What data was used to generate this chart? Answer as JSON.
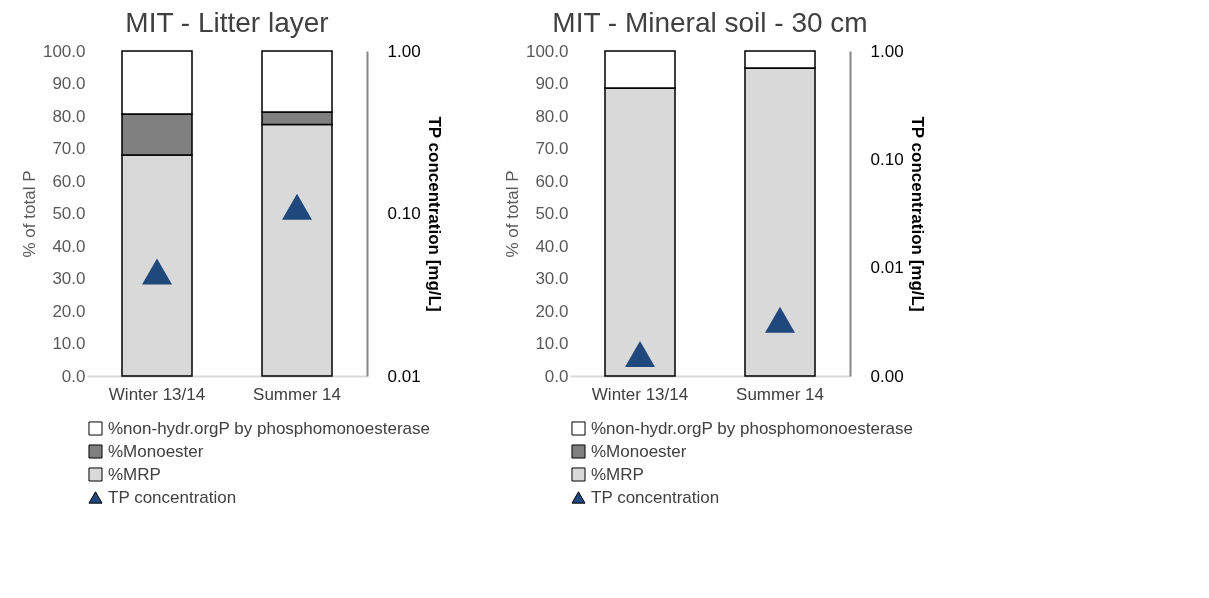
{
  "chart_data": [
    {
      "type": "bar",
      "stacked": true,
      "title": "MIT - Litter layer",
      "ylabel": "% of total P",
      "y2label": "TP concentration [mg/L]",
      "categories": [
        "Winter 13/14",
        "Summer 14"
      ],
      "series": [
        {
          "name": "%MRP",
          "color": "#d9d9d9",
          "values": [
            68.0,
            77.4
          ]
        },
        {
          "name": "%Monoester",
          "color": "#808080",
          "values": [
            12.6,
            3.8
          ]
        },
        {
          "name": "%non-hydr.orgP by phosphomonoesterase",
          "color": "#ffffff",
          "values": [
            19.4,
            18.8
          ]
        },
        {
          "name": "TP concentration",
          "type": "scatter",
          "axis": "y2",
          "marker": "triangle",
          "color": "#1f497d",
          "values": [
            0.044,
            0.11
          ]
        }
      ],
      "ylim": [
        0,
        100
      ],
      "yticks": [
        {
          "value": 0,
          "label": "0.0"
        },
        {
          "value": 10,
          "label": "10.0"
        },
        {
          "value": 20,
          "label": "20.0"
        },
        {
          "value": 30,
          "label": "30.0"
        },
        {
          "value": 40,
          "label": "40.0"
        },
        {
          "value": 50,
          "label": "50.0"
        },
        {
          "value": 60,
          "label": "60.0"
        },
        {
          "value": 70,
          "label": "70.0"
        },
        {
          "value": 80,
          "label": "80.0"
        },
        {
          "value": 90,
          "label": "90.0"
        },
        {
          "value": 100,
          "label": "100.0"
        }
      ],
      "y2lim": [
        0.01,
        1
      ],
      "y2ticks": [
        {
          "value": 0.01,
          "label": "0.01"
        },
        {
          "value": 0.1,
          "label": "0.10"
        },
        {
          "value": 1,
          "label": "1.00"
        }
      ],
      "log": "y2",
      "grid": false,
      "legend": "bottom"
    },
    {
      "type": "bar",
      "stacked": true,
      "title": "MIT - Mineral soil - 30 cm",
      "ylabel": "% of total P",
      "y2label": "TP concentration [mg/L]",
      "categories": [
        "Winter 13/14",
        "Summer 14"
      ],
      "series": [
        {
          "name": "%MRP",
          "color": "#d9d9d9",
          "values": [
            88.6,
            94.8
          ]
        },
        {
          "name": "%Monoester",
          "color": "#808080",
          "values": [
            0,
            0
          ]
        },
        {
          "name": "%non-hydr.orgP by phosphomonoesterase",
          "color": "#ffffff",
          "values": [
            11.4,
            5.2
          ]
        },
        {
          "name": "TP concentration",
          "type": "scatter",
          "axis": "y2",
          "marker": "triangle",
          "color": "#1f497d",
          "values": [
            0.0016,
            0.0033
          ]
        }
      ],
      "ylim": [
        0,
        100
      ],
      "yticks": [
        {
          "value": 0,
          "label": "0.0"
        },
        {
          "value": 10,
          "label": "10.0"
        },
        {
          "value": 20,
          "label": "20.0"
        },
        {
          "value": 30,
          "label": "30.0"
        },
        {
          "value": 40,
          "label": "40.0"
        },
        {
          "value": 50,
          "label": "50.0"
        },
        {
          "value": 60,
          "label": "60.0"
        },
        {
          "value": 70,
          "label": "70.0"
        },
        {
          "value": 80,
          "label": "80.0"
        },
        {
          "value": 90,
          "label": "90.0"
        },
        {
          "value": 100,
          "label": "100.0"
        }
      ],
      "y2lim": [
        0.001,
        1
      ],
      "y2ticks": [
        {
          "value": 0.001,
          "label": "0.00"
        },
        {
          "value": 0.01,
          "label": "0.01"
        },
        {
          "value": 0.1,
          "label": "0.10"
        },
        {
          "value": 1,
          "label": "1.00"
        }
      ],
      "log": "y2",
      "grid": false,
      "legend": "bottom"
    }
  ]
}
